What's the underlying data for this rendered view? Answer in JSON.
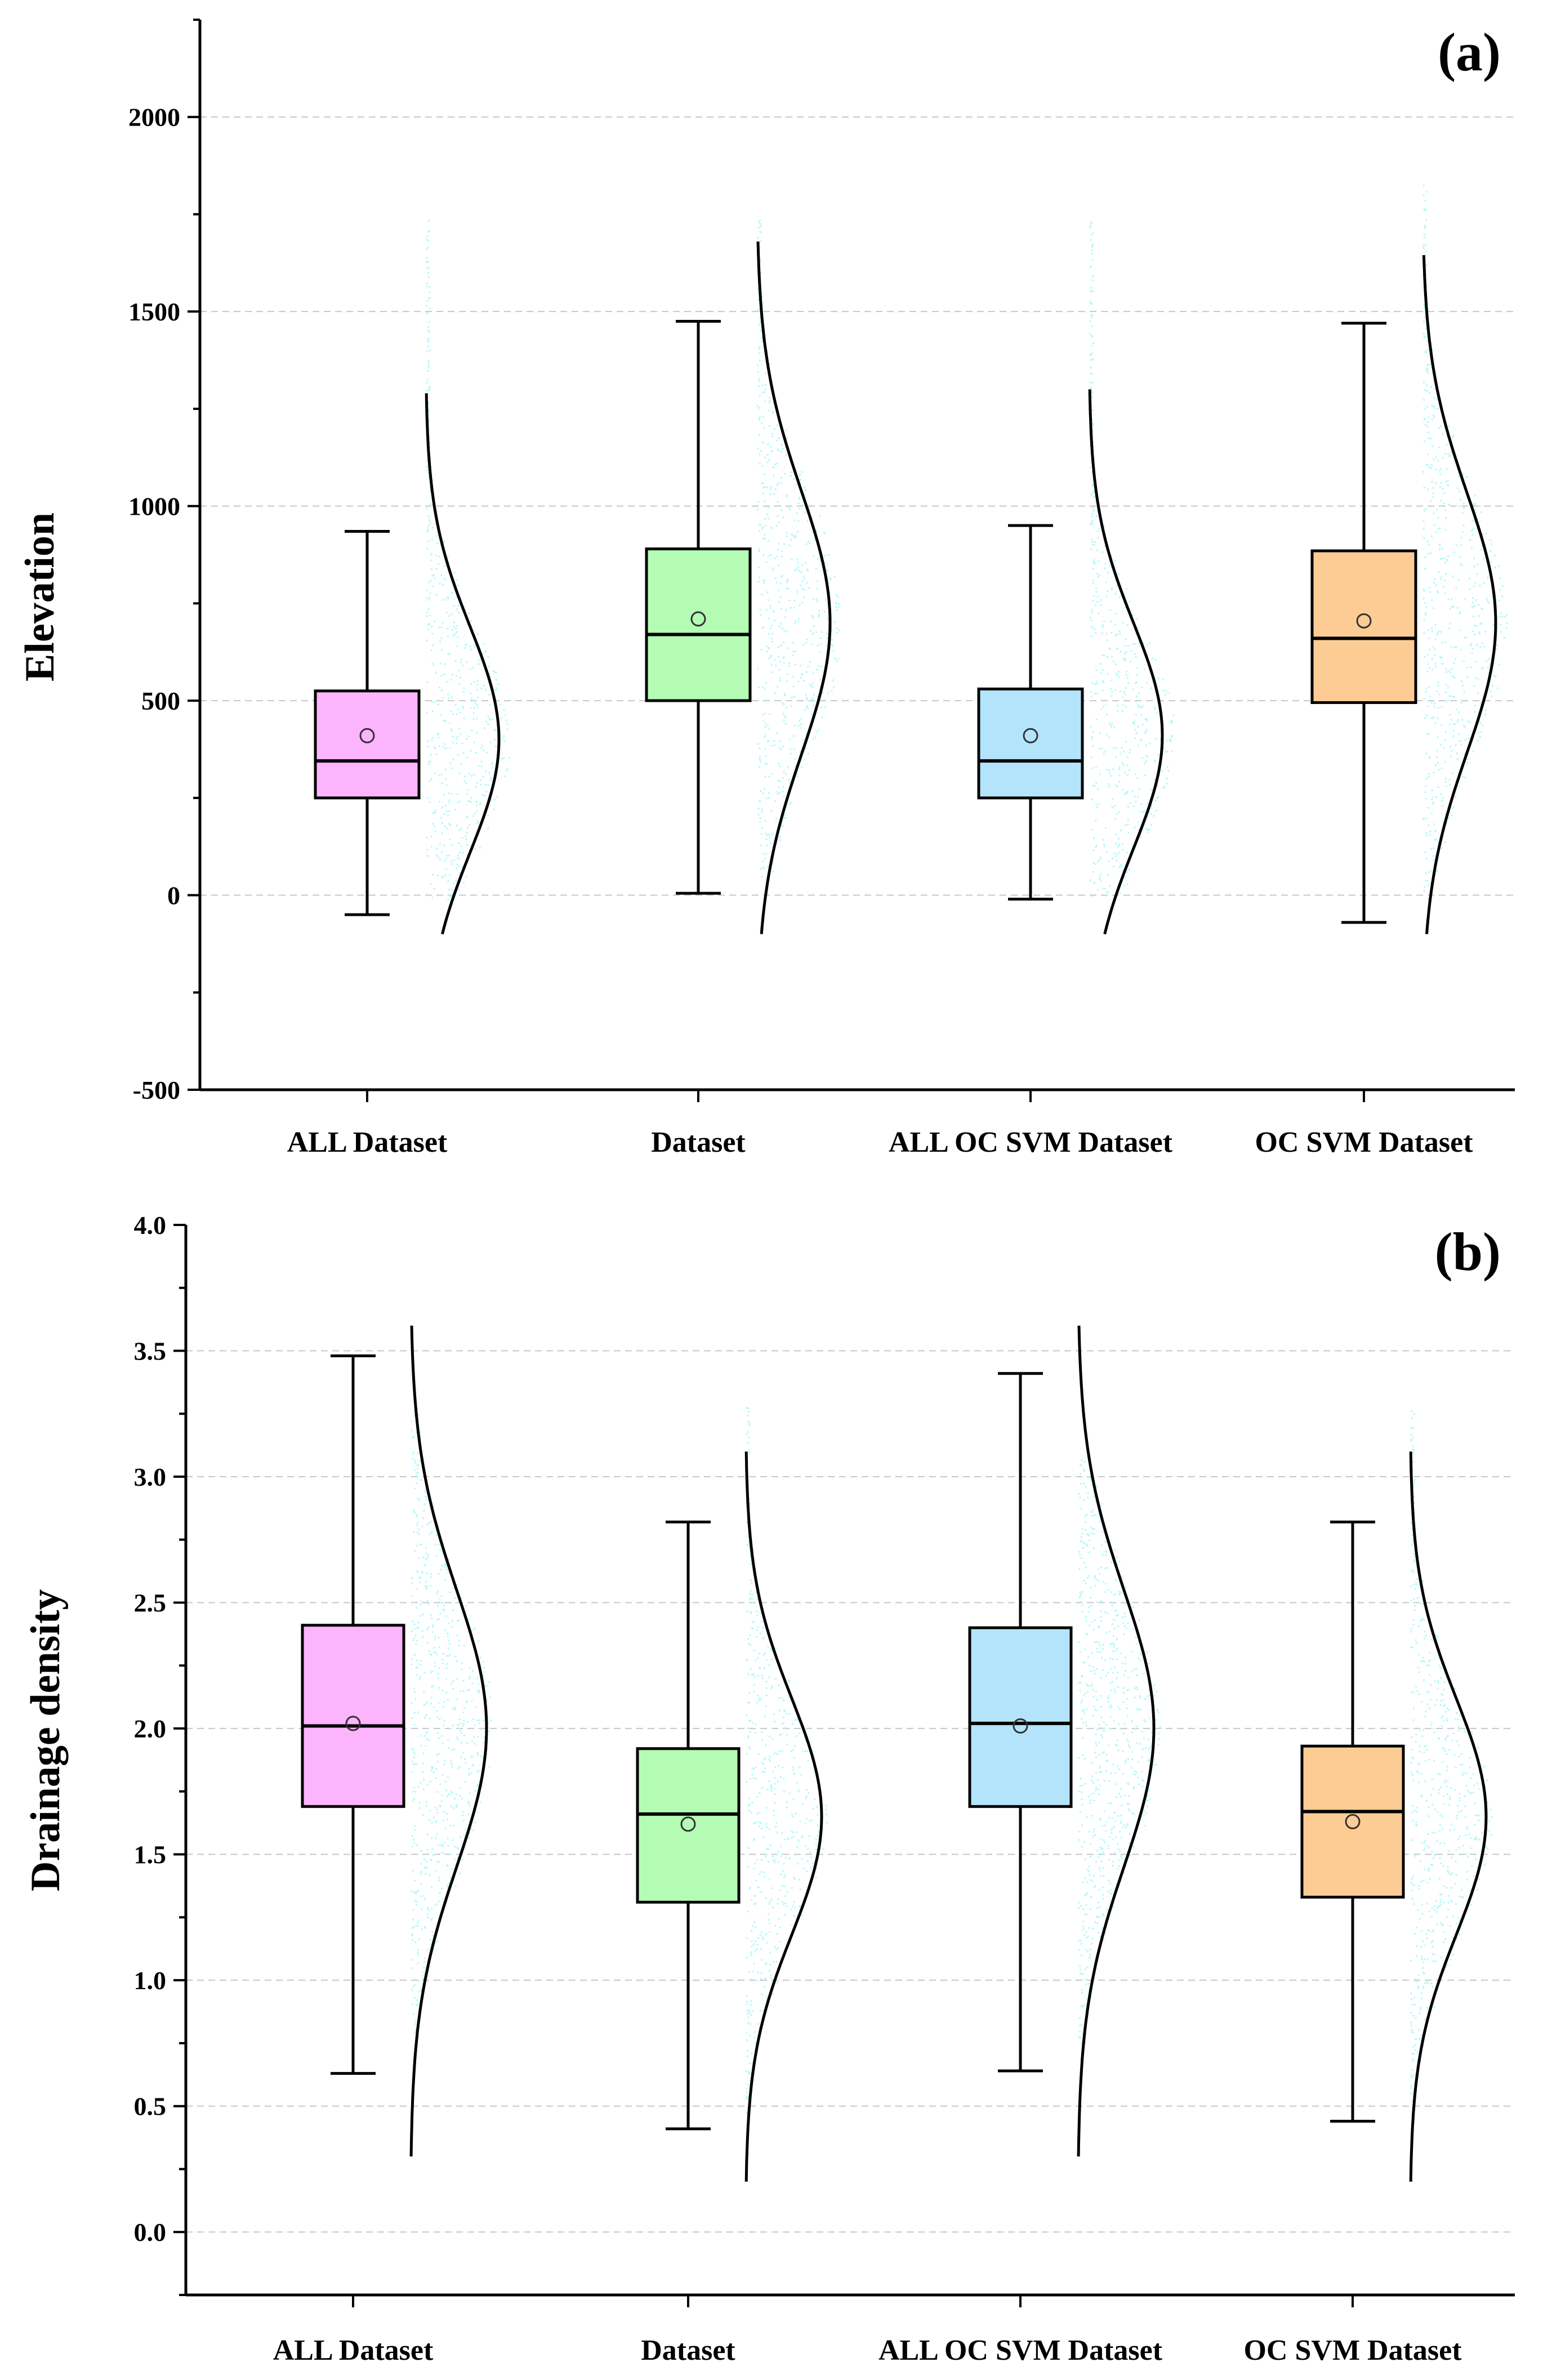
{
  "chart_data": [
    {
      "type": "box",
      "panel_label": "(a)",
      "ylabel": "Elevation",
      "ylim": [
        -500,
        2250
      ],
      "yticks": [
        "-500",
        "0",
        "500",
        "1000",
        "1500",
        "2000"
      ],
      "grid_values": [
        0,
        500,
        1000,
        1500,
        2000
      ],
      "categories": [
        "ALL Dataset",
        "Dataset",
        "ALL OC SVM Dataset",
        "OC SVM Dataset"
      ],
      "box_colors": [
        "#fcb4fc",
        "#b4fcb4",
        "#b4e4fc",
        "#fccc94"
      ],
      "scatter_color": "#b4f8f8",
      "boxes": [
        {
          "whisker_low": -50,
          "q1": 250,
          "median": 345,
          "q3": 525,
          "whisker_high": 935,
          "mean": 410,
          "dist_mean": 400,
          "dist_sd": 290,
          "dist_range": [
            -100,
            1290
          ],
          "scatter_range": [
            10,
            1720
          ]
        },
        {
          "whisker_low": 5,
          "q1": 500,
          "median": 670,
          "q3": 890,
          "whisker_high": 1475,
          "mean": 710,
          "dist_mean": 700,
          "dist_sd": 340,
          "dist_range": [
            -100,
            1680
          ],
          "scatter_range": [
            60,
            1750
          ]
        },
        {
          "whisker_low": -10,
          "q1": 250,
          "median": 345,
          "q3": 530,
          "whisker_high": 950,
          "mean": 410,
          "dist_mean": 410,
          "dist_sd": 290,
          "dist_range": [
            -100,
            1300
          ],
          "scatter_range": [
            10,
            1740
          ]
        },
        {
          "whisker_low": -70,
          "q1": 495,
          "median": 660,
          "q3": 885,
          "whisker_high": 1470,
          "mean": 705,
          "dist_mean": 700,
          "dist_sd": 335,
          "dist_range": [
            -100,
            1645
          ],
          "scatter_range": [
            10,
            1810
          ]
        }
      ]
    },
    {
      "type": "box",
      "panel_label": "(b)",
      "ylabel": "Drainage density",
      "ylim": [
        -0.25,
        4.0
      ],
      "yticks": [
        "0.0",
        "0.5",
        "1.0",
        "1.5",
        "2.0",
        "2.5",
        "3.0",
        "3.5",
        "4.0"
      ],
      "grid_values": [
        0,
        0.5,
        1.0,
        1.5,
        2.0,
        2.5,
        3.0,
        3.5
      ],
      "categories": [
        "ALL Dataset",
        "Dataset",
        "ALL OC SVM Dataset",
        "OC SVM Dataset"
      ],
      "box_colors": [
        "#fcb4fc",
        "#b4fcb4",
        "#b4e4fc",
        "#fccc94"
      ],
      "scatter_color": "#b4f8f8",
      "boxes": [
        {
          "whisker_low": 0.63,
          "q1": 1.69,
          "median": 2.01,
          "q3": 2.41,
          "whisker_high": 3.48,
          "mean": 2.02,
          "dist_mean": 2.0,
          "dist_sd": 0.55,
          "dist_range": [
            0.3,
            3.6
          ],
          "scatter_range": [
            0.8,
            3.25
          ]
        },
        {
          "whisker_low": 0.41,
          "q1": 1.31,
          "median": 1.66,
          "q3": 1.92,
          "whisker_high": 2.82,
          "mean": 1.62,
          "dist_mean": 1.65,
          "dist_sd": 0.47,
          "dist_range": [
            0.2,
            3.1
          ],
          "scatter_range": [
            0.5,
            3.28
          ]
        },
        {
          "whisker_low": 0.64,
          "q1": 1.69,
          "median": 2.02,
          "q3": 2.4,
          "whisker_high": 3.41,
          "mean": 2.01,
          "dist_mean": 2.0,
          "dist_sd": 0.55,
          "dist_range": [
            0.3,
            3.6
          ],
          "scatter_range": [
            0.75,
            3.05
          ]
        },
        {
          "whisker_low": 0.44,
          "q1": 1.33,
          "median": 1.67,
          "q3": 1.93,
          "whisker_high": 2.82,
          "mean": 1.63,
          "dist_mean": 1.65,
          "dist_sd": 0.47,
          "dist_range": [
            0.2,
            3.1
          ],
          "scatter_range": [
            0.55,
            3.25
          ]
        }
      ]
    }
  ]
}
